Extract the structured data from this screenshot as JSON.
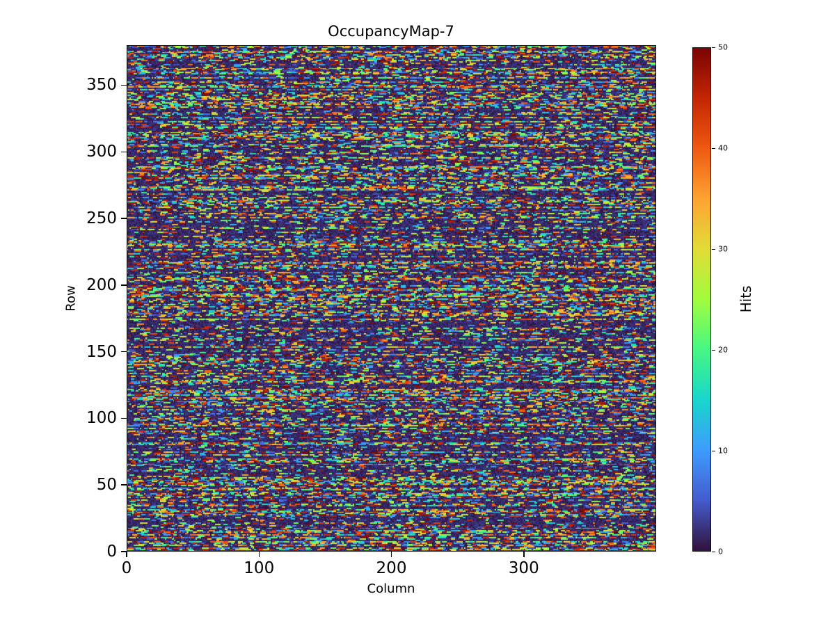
{
  "figure": {
    "background": "#ffffff"
  },
  "chart_data": {
    "type": "heatmap",
    "title": "OccupancyMap-7",
    "xlabel": "Column",
    "ylabel": "Row",
    "colorbar_label": "Hits",
    "x_range": [
      0,
      400
    ],
    "y_range": [
      0,
      380
    ],
    "value_range": [
      0,
      50
    ],
    "x_ticks": [
      0,
      100,
      200,
      300
    ],
    "y_ticks": [
      0,
      50,
      100,
      150,
      200,
      250,
      300,
      350
    ],
    "colorbar_ticks": [
      0,
      10,
      20,
      30,
      40,
      50
    ],
    "grid": false,
    "colormap": "turbo",
    "colormap_stops": [
      {
        "t": 0.0,
        "rgb": [
          48,
          18,
          59
        ]
      },
      {
        "t": 0.1,
        "rgb": [
          69,
          91,
          205
        ]
      },
      {
        "t": 0.2,
        "rgb": [
          62,
          155,
          254
        ]
      },
      {
        "t": 0.3,
        "rgb": [
          24,
          214,
          203
        ]
      },
      {
        "t": 0.4,
        "rgb": [
          70,
          247,
          131
        ]
      },
      {
        "t": 0.5,
        "rgb": [
          162,
          252,
          60
        ]
      },
      {
        "t": 0.6,
        "rgb": [
          225,
          220,
          55
        ]
      },
      {
        "t": 0.7,
        "rgb": [
          254,
          163,
          49
        ]
      },
      {
        "t": 0.8,
        "rgb": [
          239,
          89,
          17
        ]
      },
      {
        "t": 0.9,
        "rgb": [
          196,
          37,
          3
        ]
      },
      {
        "t": 1.0,
        "rgb": [
          122,
          4,
          3
        ]
      }
    ],
    "pattern": {
      "description": "Dense random occupancy noise: dark low-value background with short horizontal multicolor streak segments; streak density varies row to row producing horizontal banding.",
      "rows": 380,
      "cols": 400,
      "seed": 7,
      "background_value_max": 3,
      "streak_value_min": 4,
      "streak_value_max": 50
    }
  }
}
